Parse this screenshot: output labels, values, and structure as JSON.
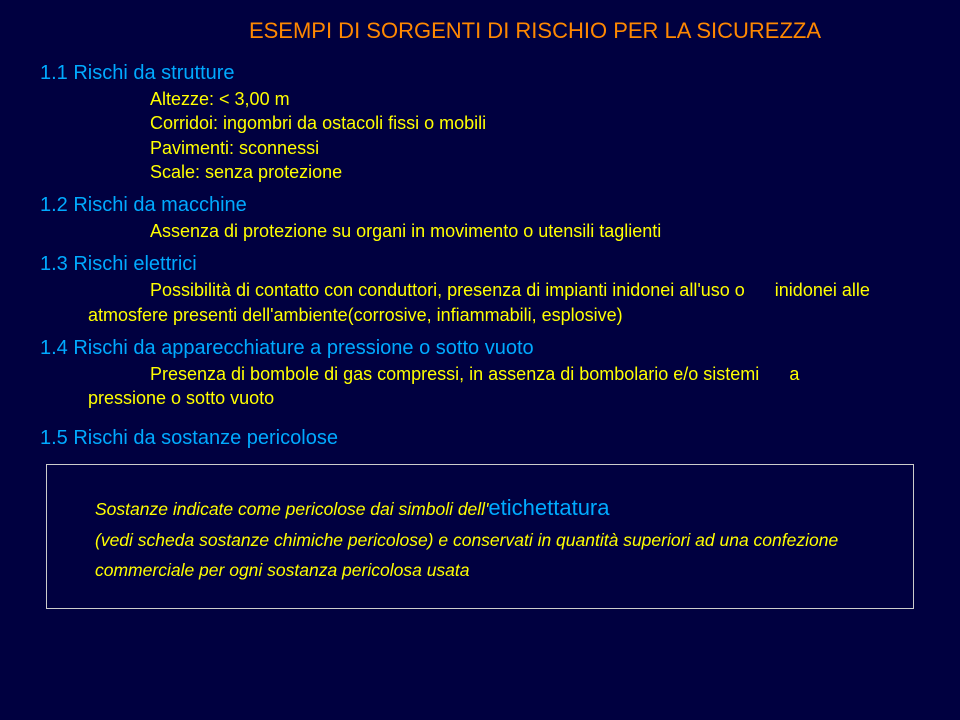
{
  "title": "ESEMPI DI SORGENTI DI RISCHIO PER LA SICUREZZA",
  "sections": {
    "s1": {
      "heading": "1.1 Rischi da strutture",
      "lines": [
        "Altezze: < 3,00 m",
        "Corridoi: ingombri da ostacoli fissi o mobili",
        "Pavimenti: sconnessi",
        "Scale: senza protezione"
      ]
    },
    "s2": {
      "heading": "1.2 Rischi da macchine",
      "line": "Assenza di protezione su organi in movimento o utensili taglienti"
    },
    "s3": {
      "heading": "1.3 Rischi elettrici",
      "line1a": "Possibilità di contatto con conduttori, presenza di impianti inidonei all'uso o",
      "line1b": "inidonei alle",
      "line2": "atmosfere presenti dell'ambiente(corrosive, infiammabili, esplosive)"
    },
    "s4": {
      "heading": "1.4 Rischi da apparecchiature a pressione o sotto vuoto",
      "line1a": "Presenza di bombole di gas compressi, in assenza di bombolario e/o sistemi",
      "line1b": "a",
      "line2": "pressione o sotto vuoto"
    },
    "s5": {
      "heading": "1.5 Rischi da sostanze pericolose",
      "box_prefix": "Sostanze indicate come pericolose dai simboli dell'",
      "box_keyword": "etichettatura",
      "box_rest": "(vedi scheda sostanze chimiche pericolose) e conservati in quantità superiori ad una confezione commerciale per ogni sostanza pericolosa usata"
    }
  }
}
